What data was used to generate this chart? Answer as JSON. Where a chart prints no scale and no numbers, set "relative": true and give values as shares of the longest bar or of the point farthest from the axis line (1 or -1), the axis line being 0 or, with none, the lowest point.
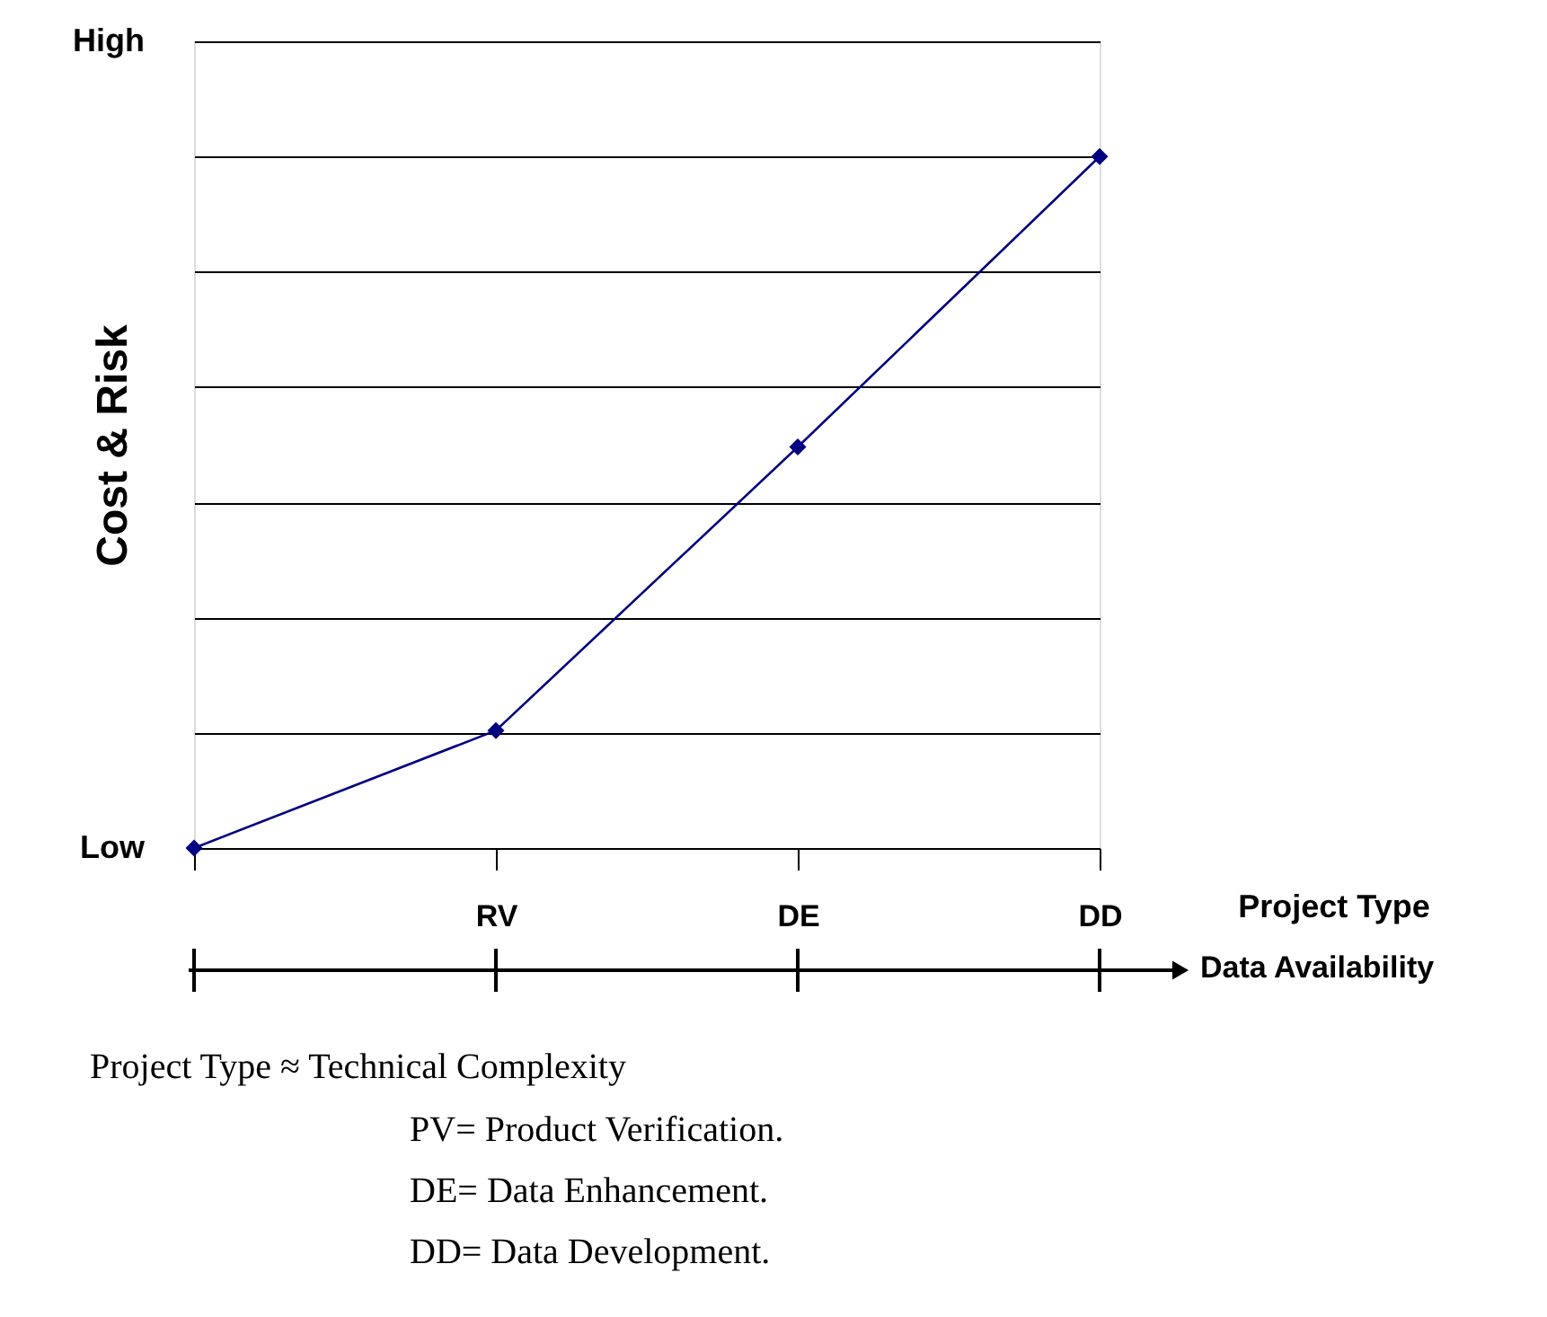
{
  "chart_data": {
    "type": "line",
    "relative": true,
    "ylabel": "Cost & Risk",
    "xlabel": "Project Type",
    "categories": [
      null,
      "RV",
      "DE",
      "DD"
    ],
    "series": [
      {
        "color": "#000080",
        "values": [
          0,
          0.17,
          0.58,
          1
        ]
      }
    ],
    "marker": "diamond",
    "line_style": "solid",
    "grid": "y",
    "annotations": [
      "High",
      "Low",
      "Data Availability",
      "Project Type ≈ Technical Complexity",
      "PV= Product Verification.",
      "DE= Data Enhancement.",
      "DD= Data Development."
    ]
  }
}
